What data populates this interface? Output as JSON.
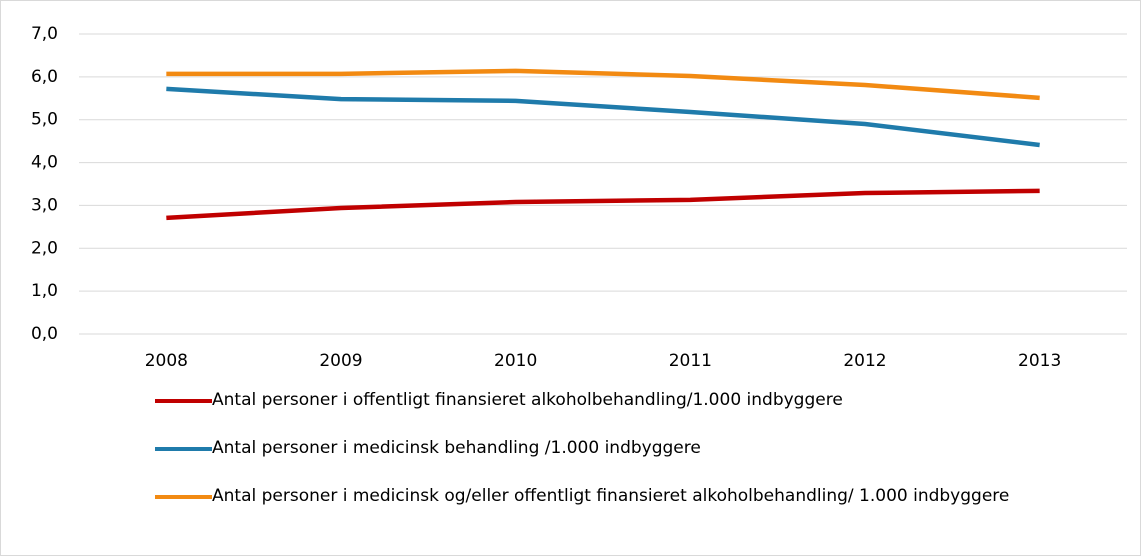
{
  "chart_data": {
    "type": "line",
    "categories": [
      "2008",
      "2009",
      "2010",
      "2011",
      "2012",
      "2013"
    ],
    "series": [
      {
        "name": "Antal personer i offentligt finansieret alkoholbehandling/1.000 indbyggere",
        "color": "#c00000",
        "values": [
          2.71,
          2.94,
          3.08,
          3.13,
          3.29,
          3.34
        ]
      },
      {
        "name": "Antal personer i medicinsk behandling /1.000 indbyggere",
        "color": "#1f7bab",
        "values": [
          5.72,
          5.48,
          5.44,
          5.18,
          4.9,
          4.41
        ]
      },
      {
        "name": "Antal personer i medicinsk og/eller offentligt finansieret alkoholbehandling/ 1.000 indbyggere",
        "color": "#f28a12",
        "values": [
          6.07,
          6.07,
          6.14,
          6.02,
          5.81,
          5.51
        ]
      }
    ],
    "ylim": [
      0,
      7
    ],
    "yticks": [
      {
        "value": 0,
        "label": "0,0"
      },
      {
        "value": 1,
        "label": "1,0"
      },
      {
        "value": 2,
        "label": "2,0"
      },
      {
        "value": 3,
        "label": "3,0"
      },
      {
        "value": 4,
        "label": "4,0"
      },
      {
        "value": 5,
        "label": "5,0"
      },
      {
        "value": 6,
        "label": "6,0"
      },
      {
        "value": 7,
        "label": "7,0"
      }
    ],
    "grid": true,
    "legend": "bottom"
  }
}
